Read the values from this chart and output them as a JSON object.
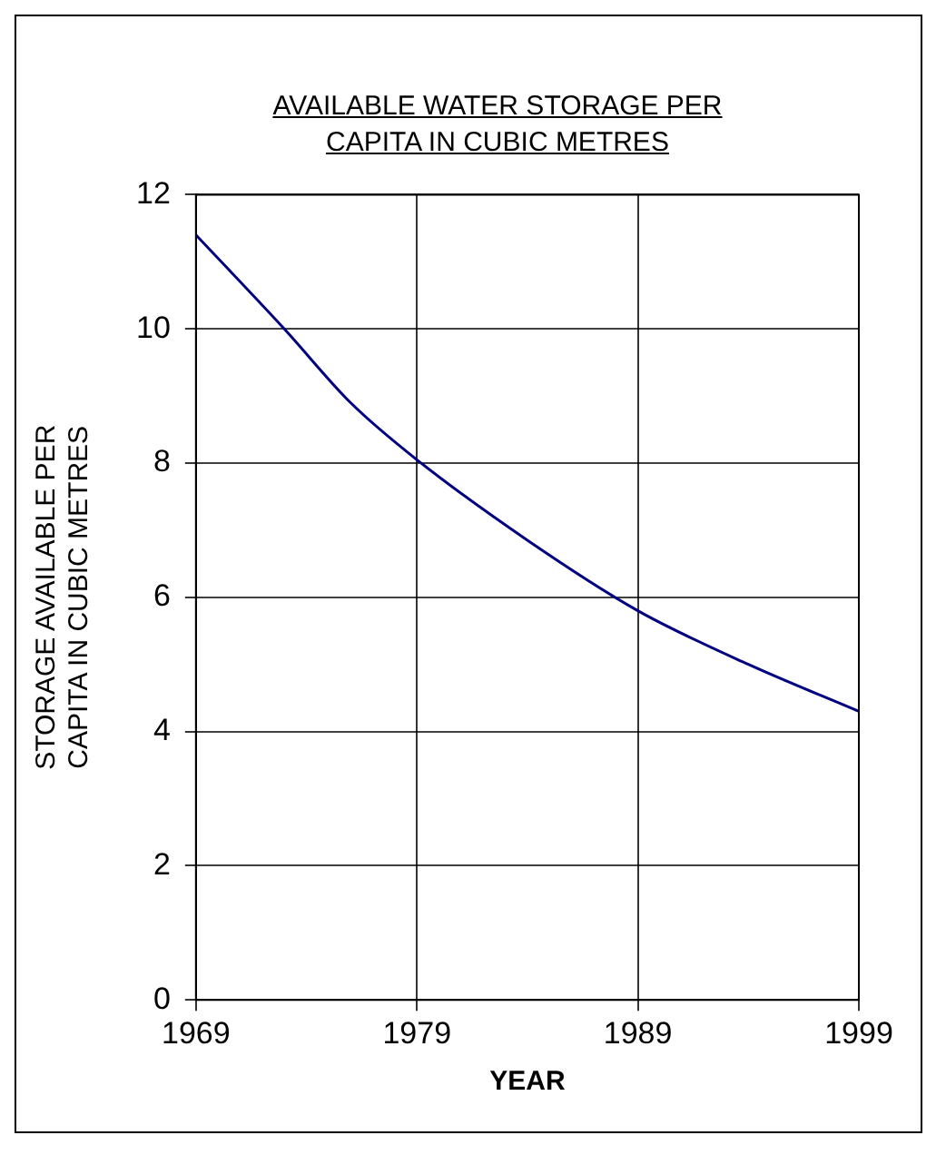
{
  "chart_data": {
    "type": "line",
    "title": "AVAILABLE WATER STORAGE PER CAPITA IN CUBIC METRES",
    "xlabel": "YEAR",
    "ylabel": "STORAGE AVAILABLE PER CAPITA IN CUBIC METRES",
    "x": [
      1969,
      1973,
      1976,
      1979,
      1984,
      1989,
      1994,
      1999
    ],
    "series": [
      {
        "color": "#000080",
        "values": [
          11.4,
          10.0,
          8.9,
          8.05,
          6.85,
          5.8,
          5.0,
          4.3
        ]
      }
    ],
    "xlim": [
      1969,
      1999
    ],
    "xticks": [
      1969,
      1979,
      1989,
      1999
    ],
    "ylim": [
      0,
      12
    ],
    "yticks": [
      0,
      2,
      4,
      6,
      8,
      10,
      12
    ],
    "grid": true,
    "legend": false,
    "marker": "none",
    "line_style": "solid"
  }
}
